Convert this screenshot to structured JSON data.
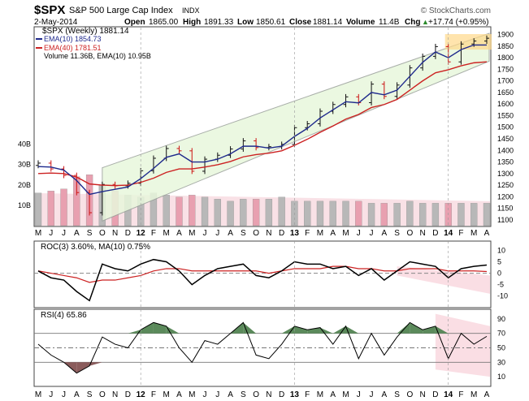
{
  "header": {
    "symbol": "$SPX",
    "name": "S&P 500 Large Cap Index",
    "exchange": "INDX",
    "brand": "© StockCharts.com",
    "date": "2-May-2014",
    "open_label": "Open",
    "open": "1865.00",
    "high_label": "High",
    "high": "1891.33",
    "low_label": "Low",
    "low": "1850.61",
    "close_label": "Close",
    "close": "1881.14",
    "volume_label": "Volume",
    "volume": "11.4B",
    "chg_label": "Chg",
    "chg": "+17.74 (+0.95%)",
    "chg_arrow": "▲"
  },
  "legend": {
    "price": "$SPX (Weekly) 1881.14",
    "ema10": "EMA(10) 1854.73",
    "ema40": "EMA(40) 1781.51",
    "volume": "Volume 11.36B, EMA(10) 10.95B"
  },
  "colors": {
    "ema10": "#1f2a8c",
    "ema40": "#cc2222",
    "channel_fill": "#e8f7dc",
    "channel_line": "#9aa09a",
    "vol_up": "#b8b8b8",
    "vol_down": "#e8a0b0",
    "vol_band": "#f7d4dc",
    "rsi_fill": "#5b8a5b",
    "rsi_low_fill": "#8a5b5b",
    "highlight": "#ffd98a",
    "wedge": "#f8d0d8"
  },
  "price_axis": {
    "ticks": [
      "1900",
      "1850",
      "1800",
      "1750",
      "1700",
      "1650",
      "1600",
      "1550",
      "1500",
      "1450",
      "1400",
      "1350",
      "1300",
      "1250",
      "1200",
      "1150",
      "1100"
    ]
  },
  "volume_axis": {
    "ticks": [
      "40B",
      "30B",
      "20B",
      "10B"
    ]
  },
  "roc_panel": {
    "label": "ROC(3) 3.60%, MA(10) 0.75%",
    "ticks": [
      "10",
      "5",
      "0",
      "-5",
      "-10"
    ]
  },
  "rsi_panel": {
    "label": "RSI(4) 65.86",
    "ticks": [
      "90",
      "70",
      "50",
      "30",
      "10"
    ]
  },
  "x_axis": {
    "labels": [
      "M",
      "J",
      "J",
      "A",
      "S",
      "O",
      "N",
      "D",
      "12",
      "F",
      "M",
      "A",
      "M",
      "J",
      "J",
      "A",
      "S",
      "O",
      "N",
      "D",
      "13",
      "F",
      "M",
      "A",
      "M",
      "J",
      "J",
      "A",
      "S",
      "O",
      "N",
      "D",
      "14",
      "F",
      "M",
      "A"
    ]
  },
  "chart_data": {
    "type": "line",
    "price": {
      "x": [
        "2011-05",
        "2011-06",
        "2011-07",
        "2011-08",
        "2011-09",
        "2011-10",
        "2011-11",
        "2011-12",
        "2012-01",
        "2012-02",
        "2012-03",
        "2012-04",
        "2012-05",
        "2012-06",
        "2012-07",
        "2012-08",
        "2012-09",
        "2012-10",
        "2012-11",
        "2012-12",
        "2013-01",
        "2013-02",
        "2013-03",
        "2013-04",
        "2013-05",
        "2013-06",
        "2013-07",
        "2013-08",
        "2013-09",
        "2013-10",
        "2013-11",
        "2013-12",
        "2014-01",
        "2014-02",
        "2014-03",
        "2014-04"
      ],
      "close": [
        1345,
        1320,
        1292,
        1218,
        1131,
        1253,
        1247,
        1258,
        1312,
        1366,
        1408,
        1398,
        1310,
        1362,
        1379,
        1406,
        1441,
        1412,
        1416,
        1426,
        1498,
        1515,
        1569,
        1598,
        1631,
        1606,
        1686,
        1633,
        1682,
        1756,
        1806,
        1848,
        1782,
        1859,
        1872,
        1884
      ],
      "ylim": [
        1075,
        1930
      ]
    },
    "ema10": [
      1330,
      1328,
      1315,
      1270,
      1210,
      1222,
      1232,
      1242,
      1278,
      1322,
      1370,
      1385,
      1350,
      1350,
      1362,
      1385,
      1418,
      1418,
      1410,
      1418,
      1460,
      1495,
      1540,
      1575,
      1610,
      1605,
      1650,
      1640,
      1660,
      1720,
      1780,
      1825,
      1800,
      1835,
      1855,
      1855
    ],
    "ema40": [
      1300,
      1302,
      1300,
      1285,
      1255,
      1250,
      1248,
      1250,
      1262,
      1280,
      1305,
      1320,
      1320,
      1328,
      1338,
      1352,
      1372,
      1382,
      1388,
      1398,
      1422,
      1448,
      1478,
      1505,
      1535,
      1555,
      1585,
      1598,
      1620,
      1660,
      1700,
      1735,
      1748,
      1765,
      1778,
      1782
    ],
    "volume": {
      "values_B": [
        16,
        17,
        18,
        24,
        25,
        20,
        17,
        15,
        14,
        16,
        15,
        14,
        15,
        14,
        13,
        12,
        13,
        13,
        13,
        14,
        12,
        12,
        12,
        12,
        12,
        12,
        11,
        11,
        11,
        12,
        11,
        11,
        11,
        11,
        11,
        11
      ],
      "ylim": [
        0,
        45
      ]
    },
    "roc3": {
      "values": [
        1,
        -2,
        -3,
        -8,
        -12,
        4,
        2,
        1,
        4,
        6,
        5,
        1,
        -5,
        -1,
        2,
        3,
        4,
        -1,
        -2,
        1,
        5,
        4,
        4,
        2,
        3,
        -1,
        2,
        -3,
        1,
        5,
        4,
        3,
        -2,
        2,
        3,
        3.6
      ],
      "ma10": [
        1,
        0,
        -1,
        -2,
        -4,
        -3,
        -3,
        -2,
        -1,
        1,
        2,
        2,
        1,
        1,
        1,
        1,
        1,
        1,
        0,
        1,
        2,
        2,
        2,
        3,
        3,
        2,
        2,
        1,
        1,
        2,
        2,
        2,
        1,
        1,
        1,
        0.75
      ],
      "ylim": [
        -14,
        13
      ]
    },
    "rsi4": {
      "values": [
        55,
        40,
        30,
        15,
        25,
        65,
        55,
        50,
        75,
        85,
        80,
        50,
        30,
        60,
        55,
        70,
        85,
        40,
        35,
        55,
        80,
        75,
        78,
        55,
        80,
        35,
        70,
        40,
        65,
        85,
        75,
        80,
        35,
        70,
        55,
        65.86
      ],
      "ylim": [
        0,
        100
      ],
      "levels": [
        30,
        50,
        70
      ]
    }
  }
}
